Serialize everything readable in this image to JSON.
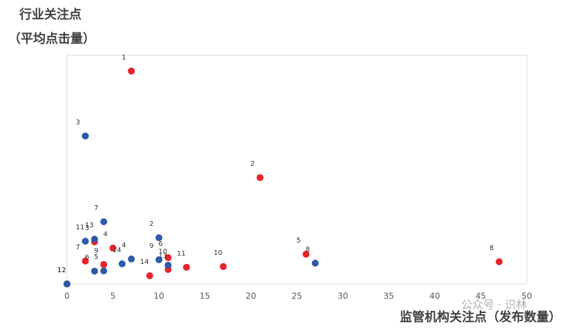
{
  "chart_data": {
    "type": "scatter",
    "y_label_lines": [
      "行业关注点",
      "（平均点击量）"
    ],
    "x_label": "监管机构关注点（发布数量）",
    "watermark": "公众号 · 识林",
    "xlim": [
      0,
      50
    ],
    "xticks": [
      0,
      5,
      10,
      15,
      20,
      25,
      30,
      35,
      40,
      45,
      50
    ],
    "ylim": [
      0,
      100
    ],
    "series": [
      {
        "color": "#e8232b",
        "point_labels": [
          1,
          2,
          3,
          4,
          5,
          6,
          7,
          8,
          9,
          10,
          11,
          12,
          13,
          14
        ],
        "x": [
          7,
          21,
          3,
          5,
          26,
          11,
          2,
          47,
          4,
          17,
          13,
          0,
          11,
          9
        ],
        "values": [
          93.1,
          46.5,
          18.4,
          15.7,
          13,
          11.5,
          10,
          9.7,
          8.5,
          7.6,
          7.3,
          0,
          6.3,
          3.6
        ]
      },
      {
        "color": "#2e5aa7",
        "point_labels": [
          1,
          2,
          3,
          4,
          5,
          6,
          7,
          8,
          9,
          10,
          11,
          12,
          13,
          14
        ],
        "x": [
          0,
          10,
          2,
          7,
          4,
          3,
          4,
          27,
          10,
          11,
          2,
          0,
          3,
          6
        ],
        "values": [
          0,
          20.2,
          64.7,
          10.9,
          5.7,
          5.6,
          27.2,
          9.1,
          10.6,
          8.2,
          18.7,
          0,
          19.6,
          8.8
        ]
      }
    ]
  }
}
